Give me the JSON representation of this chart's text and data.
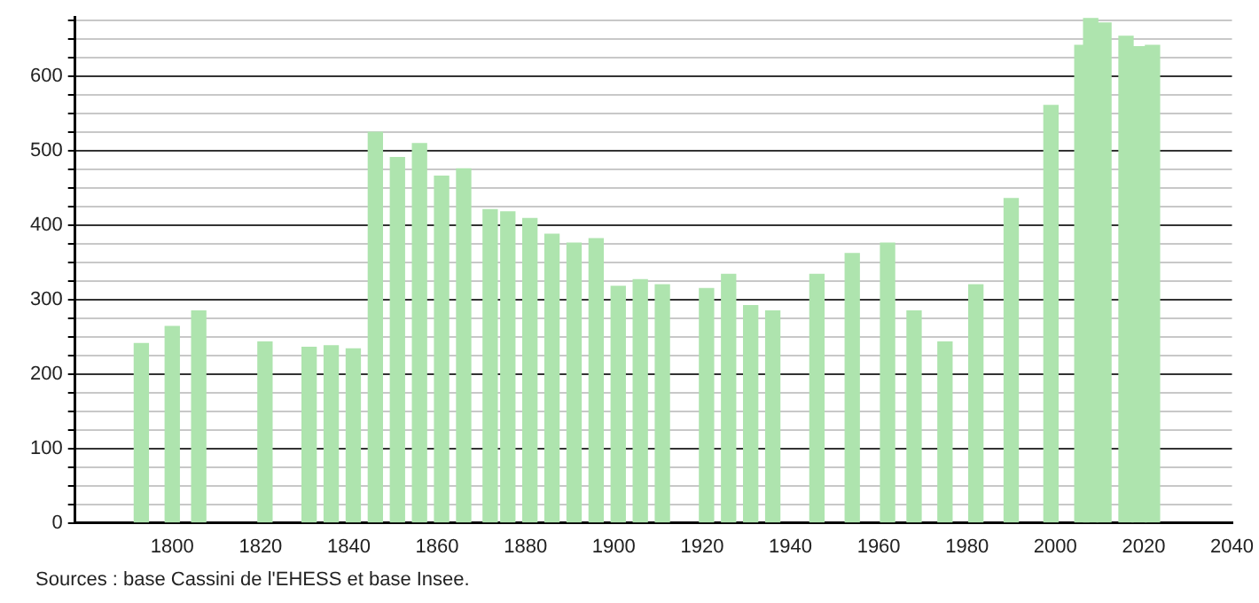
{
  "chart_data": {
    "type": "bar",
    "x": [
      1793,
      1800,
      1806,
      1821,
      1831,
      1836,
      1841,
      1846,
      1851,
      1856,
      1861,
      1866,
      1872,
      1876,
      1881,
      1886,
      1891,
      1896,
      1901,
      1906,
      1911,
      1921,
      1926,
      1931,
      1936,
      1946,
      1954,
      1962,
      1968,
      1975,
      1982,
      1990,
      1999,
      2006,
      2008,
      2011,
      2016,
      2019,
      2022
    ],
    "values": [
      241,
      264,
      285,
      243,
      236,
      238,
      234,
      525,
      491,
      510,
      466,
      476,
      421,
      418,
      409,
      388,
      376,
      382,
      318,
      327,
      320,
      315,
      334,
      292,
      285,
      334,
      362,
      376,
      285,
      243,
      320,
      436,
      561,
      642,
      678,
      672,
      654,
      640,
      642
    ],
    "color": "#aee4ae",
    "xlim": [
      1778,
      2040
    ],
    "xticks": [
      1800,
      1820,
      1840,
      1860,
      1880,
      1900,
      1920,
      1940,
      1960,
      1980,
      2000,
      2020,
      2040
    ],
    "ylim": [
      0,
      680
    ],
    "yticks": [
      0,
      {
        "value": 25,
        "label": null
      },
      {
        "value": 50,
        "label": null
      },
      {
        "value": 75,
        "label": null
      },
      100,
      {
        "value": 125,
        "label": null
      },
      {
        "value": 150,
        "label": null
      },
      {
        "value": 175,
        "label": null
      },
      200,
      {
        "value": 225,
        "label": null
      },
      {
        "value": 250,
        "label": null
      },
      {
        "value": 275,
        "label": null
      },
      300,
      {
        "value": 325,
        "label": null
      },
      {
        "value": 350,
        "label": null
      },
      {
        "value": 375,
        "label": null
      },
      400,
      {
        "value": 425,
        "label": null
      },
      {
        "value": 450,
        "label": null
      },
      {
        "value": 475,
        "label": null
      },
      500,
      {
        "value": 525,
        "label": null
      },
      {
        "value": 550,
        "label": null
      },
      {
        "value": 575,
        "label": null
      },
      600,
      {
        "value": 625,
        "label": null
      },
      {
        "value": 650,
        "label": null
      },
      {
        "value": 675,
        "label": null
      }
    ],
    "grid": "y",
    "legend": false,
    "annotations": [
      "Sources : base Cassini de l'EHESS et base Insee."
    ]
  }
}
